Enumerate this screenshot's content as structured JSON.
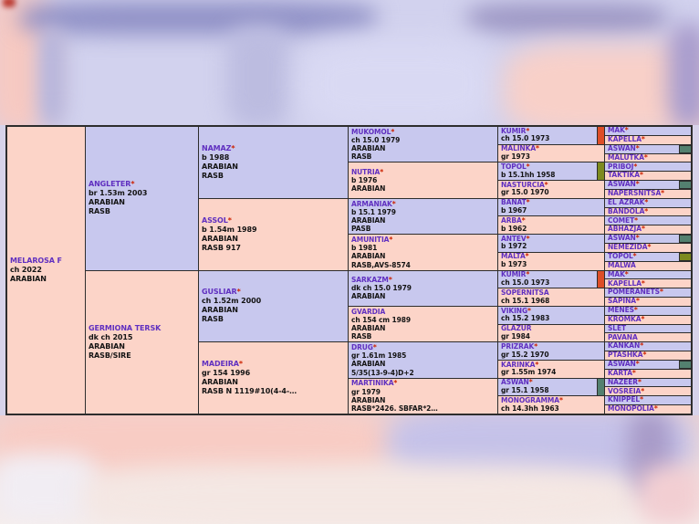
{
  "colors": {
    "male_bg": "#c8c8ee",
    "female_bg": "#fcd4c8",
    "name_color": "#6030c0",
    "star_color": "#cc2200",
    "marker_orange": "#dd4e28",
    "marker_olive": "#7d8a20",
    "marker_teal": "#53806f",
    "border_color": "#2d2d2d"
  },
  "pedigree": {
    "columns": [
      {
        "generation": 1,
        "span": 32,
        "cells": [
          {
            "name": "MELAROSA F",
            "star": "",
            "sex": "f",
            "lines": [
              "ch 2022",
              "ARABIAN"
            ],
            "marker": ""
          }
        ]
      },
      {
        "generation": 2,
        "span": 16,
        "cells": [
          {
            "name": "ANGLETER",
            "star": "*",
            "sex": "m",
            "lines": [
              "br 1.53m 2003",
              "ARABIAN",
              "RASB"
            ],
            "marker": ""
          },
          {
            "name": "GERMIONA TERSK",
            "star": "",
            "sex": "f",
            "lines": [
              "dk ch 2015",
              "ARABIAN",
              "RASB/SIRE"
            ],
            "marker": ""
          }
        ]
      },
      {
        "generation": 3,
        "span": 8,
        "cells": [
          {
            "name": "NAMAZ",
            "star": "*",
            "sex": "m",
            "lines": [
              "b 1988",
              "ARABIAN",
              "RASB"
            ],
            "marker": ""
          },
          {
            "name": "ASSOL",
            "star": "*",
            "sex": "f",
            "lines": [
              "b 1.54m 1989",
              "ARABIAN",
              "RASB 917"
            ],
            "marker": ""
          },
          {
            "name": "GUSLIAR",
            "star": "*",
            "sex": "m",
            "lines": [
              "ch 1.52m 2000",
              "ARABIAN",
              "RASB"
            ],
            "marker": ""
          },
          {
            "name": "MADEIRA",
            "star": "*",
            "sex": "f",
            "lines": [
              "gr 154 1996",
              "ARABIAN",
              "RASB N 1119#10(4-4-…"
            ],
            "marker": ""
          }
        ]
      },
      {
        "generation": 4,
        "span": 4,
        "cells": [
          {
            "name": "MUKOMOL",
            "star": "*",
            "sex": "m",
            "lines": [
              "ch 15.0 1979",
              "ARABIAN",
              "RASB"
            ],
            "marker": ""
          },
          {
            "name": "NUTRIA",
            "star": "*",
            "sex": "f",
            "lines": [
              "b 1976",
              "ARABIAN"
            ],
            "marker": ""
          },
          {
            "name": "ARMANIAK",
            "star": "*",
            "sex": "m",
            "lines": [
              "b 15.1 1979",
              "ARABIAN",
              "PASB"
            ],
            "marker": ""
          },
          {
            "name": "AMUNITIA",
            "star": "*",
            "sex": "f",
            "lines": [
              "b 1981",
              "ARABIAN",
              "RASB,AVS-8574"
            ],
            "marker": ""
          },
          {
            "name": "SARKAZM",
            "star": "*",
            "sex": "m",
            "lines": [
              "dk ch 15.0 1979",
              "ARABIAN"
            ],
            "marker": ""
          },
          {
            "name": "GVARDIA",
            "star": "",
            "sex": "f",
            "lines": [
              "ch 154 cm 1989",
              "ARABIAN",
              "RASB"
            ],
            "marker": ""
          },
          {
            "name": "DRUG",
            "star": "*",
            "sex": "m",
            "lines": [
              "gr 1.61m 1985",
              "ARABIAN",
              "5/35(13-9-4)D+2"
            ],
            "marker": ""
          },
          {
            "name": "MARTINIKA",
            "star": "*",
            "sex": "f",
            "lines": [
              "gr 1979",
              "ARABIAN",
              "RASB*2426. SBFAR*2…"
            ],
            "marker": ""
          }
        ]
      },
      {
        "generation": 5,
        "span": 2,
        "cells": [
          {
            "name": "KUMIR",
            "star": "*",
            "sex": "m",
            "lines": [
              "ch 15.0 1973"
            ],
            "marker": "orange"
          },
          {
            "name": "MALINKA",
            "star": "*",
            "sex": "f",
            "lines": [
              "gr 1973"
            ],
            "marker": ""
          },
          {
            "name": "TOPOL",
            "star": "*",
            "sex": "m",
            "lines": [
              "b 15.1hh 1958"
            ],
            "marker": "olive"
          },
          {
            "name": "NASTURCIA",
            "star": "*",
            "sex": "f",
            "lines": [
              "gr 15.0 1970"
            ],
            "marker": ""
          },
          {
            "name": "BANAT",
            "star": "*",
            "sex": "m",
            "lines": [
              "b 1967"
            ],
            "marker": ""
          },
          {
            "name": "ARBA",
            "star": "*",
            "sex": "f",
            "lines": [
              "b 1962"
            ],
            "marker": ""
          },
          {
            "name": "ANTEV",
            "star": "*",
            "sex": "m",
            "lines": [
              "b 1972"
            ],
            "marker": ""
          },
          {
            "name": "MALTA",
            "star": "*",
            "sex": "f",
            "lines": [
              "b 1973"
            ],
            "marker": ""
          },
          {
            "name": "KUMIR",
            "star": "*",
            "sex": "m",
            "lines": [
              "ch 15.0 1973"
            ],
            "marker": "orange"
          },
          {
            "name": "SOPERNITSA",
            "star": "",
            "sex": "f",
            "lines": [
              "ch 15.1 1968"
            ],
            "marker": ""
          },
          {
            "name": "VIKING",
            "star": "*",
            "sex": "m",
            "lines": [
              "ch 15.2 1983"
            ],
            "marker": ""
          },
          {
            "name": "GLAZUR",
            "star": "",
            "sex": "f",
            "lines": [
              "gr 1984"
            ],
            "marker": ""
          },
          {
            "name": "PRIZRAK",
            "star": "*",
            "sex": "m",
            "lines": [
              "gr 15.2 1970"
            ],
            "marker": ""
          },
          {
            "name": "KARINKA",
            "star": "*",
            "sex": "f",
            "lines": [
              "gr 1.55m 1974"
            ],
            "marker": ""
          },
          {
            "name": "ASWAN",
            "star": "*",
            "sex": "m",
            "lines": [
              "gr 15.1 1958"
            ],
            "marker": "teal"
          },
          {
            "name": "MONOGRAMMA",
            "star": "*",
            "sex": "f",
            "lines": [
              "ch 14.3hh 1963"
            ],
            "marker": ""
          }
        ]
      },
      {
        "generation": 6,
        "span": 1,
        "cells": [
          {
            "name": "MAK",
            "star": "*",
            "sex": "m",
            "lines": [],
            "marker": ""
          },
          {
            "name": "KAPELLA",
            "star": "*",
            "sex": "f",
            "lines": [],
            "marker": ""
          },
          {
            "name": "ASWAN",
            "star": "*",
            "sex": "m",
            "lines": [],
            "marker": "teal"
          },
          {
            "name": "MALUTKA",
            "star": "*",
            "sex": "f",
            "lines": [],
            "marker": ""
          },
          {
            "name": "PRIBOJ",
            "star": "*",
            "sex": "m",
            "lines": [],
            "marker": ""
          },
          {
            "name": "TAKTIKA",
            "star": "*",
            "sex": "f",
            "lines": [],
            "marker": ""
          },
          {
            "name": "ASWAN",
            "star": "*",
            "sex": "m",
            "lines": [],
            "marker": "teal"
          },
          {
            "name": "NAPERSNITSA",
            "star": "*",
            "sex": "f",
            "lines": [],
            "marker": ""
          },
          {
            "name": "EL AZRAK",
            "star": "*",
            "sex": "m",
            "lines": [],
            "marker": ""
          },
          {
            "name": "BANDOLA",
            "star": "*",
            "sex": "f",
            "lines": [],
            "marker": ""
          },
          {
            "name": "COMET",
            "star": "*",
            "sex": "m",
            "lines": [],
            "marker": ""
          },
          {
            "name": "ABHAZJA",
            "star": "*",
            "sex": "f",
            "lines": [],
            "marker": ""
          },
          {
            "name": "ASWAN",
            "star": "*",
            "sex": "m",
            "lines": [],
            "marker": "teal"
          },
          {
            "name": "NEMEZIDA",
            "star": "*",
            "sex": "f",
            "lines": [],
            "marker": ""
          },
          {
            "name": "TOPOL",
            "star": "*",
            "sex": "m",
            "lines": [],
            "marker": "olive"
          },
          {
            "name": "MALWA",
            "star": "",
            "sex": "f",
            "lines": [],
            "marker": ""
          },
          {
            "name": "MAK",
            "star": "*",
            "sex": "m",
            "lines": [],
            "marker": ""
          },
          {
            "name": "KAPELLA",
            "star": "*",
            "sex": "f",
            "lines": [],
            "marker": ""
          },
          {
            "name": "POMERANETS",
            "star": "*",
            "sex": "m",
            "lines": [],
            "marker": ""
          },
          {
            "name": "SAPINA",
            "star": "*",
            "sex": "f",
            "lines": [],
            "marker": ""
          },
          {
            "name": "MENES",
            "star": "*",
            "sex": "m",
            "lines": [],
            "marker": ""
          },
          {
            "name": "KROMKA",
            "star": "*",
            "sex": "f",
            "lines": [],
            "marker": ""
          },
          {
            "name": "SLET",
            "star": "",
            "sex": "m",
            "lines": [],
            "marker": ""
          },
          {
            "name": "PAVANA",
            "star": "",
            "sex": "f",
            "lines": [],
            "marker": ""
          },
          {
            "name": "KANKAN",
            "star": "*",
            "sex": "m",
            "lines": [],
            "marker": ""
          },
          {
            "name": "PTASHKA",
            "star": "*",
            "sex": "f",
            "lines": [],
            "marker": ""
          },
          {
            "name": "ASWAN",
            "star": "*",
            "sex": "m",
            "lines": [],
            "marker": "teal"
          },
          {
            "name": "KARTA",
            "star": "*",
            "sex": "f",
            "lines": [],
            "marker": ""
          },
          {
            "name": "NAZEER",
            "star": "*",
            "sex": "m",
            "lines": [],
            "marker": ""
          },
          {
            "name": "VOSREIA",
            "star": "*",
            "sex": "f",
            "lines": [],
            "marker": ""
          },
          {
            "name": "KNIPPEL",
            "star": "*",
            "sex": "m",
            "lines": [],
            "marker": ""
          },
          {
            "name": "MONOPOLIA",
            "star": "*",
            "sex": "f",
            "lines": [],
            "marker": ""
          }
        ]
      }
    ]
  }
}
